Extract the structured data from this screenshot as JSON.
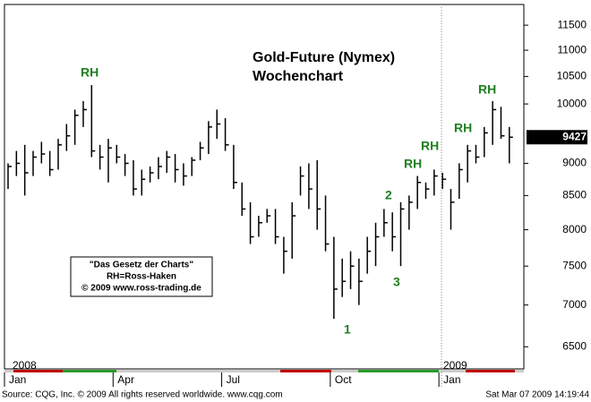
{
  "chart_data": {
    "type": "hlc",
    "title": "Gold-Future (Nymex)",
    "subtitle": "Wochenchart",
    "log_scale": true,
    "color": "#000000",
    "categories": [
      "Jan",
      null,
      null,
      null,
      null,
      null,
      null,
      null,
      null,
      null,
      null,
      null,
      null,
      "Apr",
      null,
      null,
      null,
      null,
      null,
      null,
      null,
      null,
      null,
      null,
      null,
      null,
      "Jul",
      null,
      null,
      null,
      null,
      null,
      null,
      null,
      null,
      null,
      null,
      null,
      null,
      "Oct",
      null,
      null,
      null,
      null,
      null,
      null,
      null,
      null,
      null,
      null,
      null,
      null,
      "Jan",
      null,
      null,
      null,
      null,
      null,
      null,
      null,
      null
    ],
    "years": [
      "2008",
      "2009"
    ],
    "high": [
      9000,
      9200,
      9300,
      9200,
      9350,
      9200,
      9400,
      9650,
      9900,
      10050,
      10340,
      9300,
      9400,
      9300,
      9150,
      9050,
      8900,
      8950,
      9100,
      9200,
      9150,
      9000,
      9100,
      9350,
      9700,
      9900,
      9750,
      9300,
      8700,
      8400,
      8200,
      8300,
      8300,
      7900,
      8400,
      8950,
      9000,
      9050,
      8500,
      7900,
      7600,
      7700,
      7600,
      7900,
      8100,
      8300,
      8250,
      8400,
      8500,
      8800,
      8700,
      8900,
      8850,
      8600,
      9000,
      9300,
      9300,
      9600,
      10050,
      9950,
      9600
    ],
    "low": [
      8600,
      8800,
      8500,
      8800,
      9000,
      8800,
      8900,
      9200,
      9300,
      9600,
      9100,
      8900,
      8700,
      9000,
      8800,
      8500,
      8500,
      8700,
      8750,
      8850,
      8700,
      8650,
      8800,
      9050,
      9150,
      9400,
      9200,
      8600,
      8200,
      7800,
      7900,
      8100,
      7800,
      7400,
      7600,
      8500,
      8300,
      8000,
      7700,
      6830,
      7100,
      7200,
      7000,
      7400,
      7500,
      7900,
      7700,
      7500,
      8000,
      8300,
      8450,
      8500,
      8600,
      8000,
      8450,
      8700,
      9000,
      9100,
      9300,
      9400,
      9000
    ],
    "close": [
      8950,
      9000,
      8850,
      9100,
      9150,
      8900,
      9300,
      9450,
      9800,
      9900,
      9200,
      9100,
      9250,
      9100,
      9000,
      8600,
      8750,
      8850,
      8950,
      9100,
      8900,
      8800,
      9050,
      9250,
      9600,
      9650,
      9300,
      8700,
      8300,
      7900,
      8100,
      8200,
      7900,
      7700,
      8200,
      8800,
      8600,
      8300,
      7800,
      7200,
      7300,
      7500,
      7300,
      7700,
      7900,
      8100,
      7900,
      8300,
      8400,
      8700,
      8600,
      8800,
      8750,
      8400,
      8900,
      9200,
      9100,
      9500,
      9900,
      9450,
      9427
    ],
    "ylim": [
      6250,
      11930
    ],
    "yticks": [
      6500,
      7000,
      7500,
      8000,
      8500,
      9000,
      10000,
      10500,
      11000,
      11500
    ],
    "annotations": [
      "RH",
      "RH",
      "RH",
      "RH",
      "RH",
      "1",
      "2",
      "3"
    ],
    "note_box": [
      "\"Das Gesetz der Charts\"",
      "RH=Ross-Haken",
      "© 2009 www.ross-trading.de"
    ],
    "source": "Source: CQG, Inc. © 2009 All rights reserved worldwide. www.cqg.com",
    "timestamp": "Sat Mar 07 2009 14:19:44"
  }
}
